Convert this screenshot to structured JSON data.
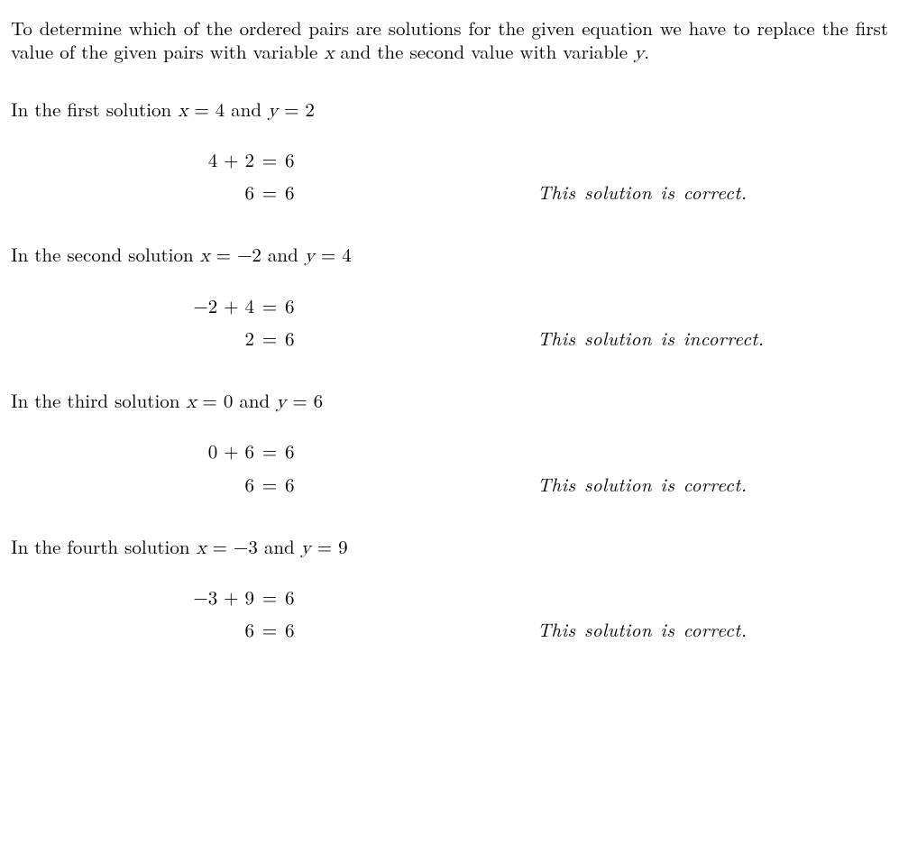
{
  "intro": {
    "part1": "To determine which of the ordered pairs are solutions for the given equation we have to replace the first value of the given pairs with variable ",
    "var1": "x",
    "part2": " and the second value with variable ",
    "var2": "y",
    "part3": "."
  },
  "solutions": [
    {
      "lead_a": "In the first solution ",
      "xvar": "x",
      "xeq": " = 4",
      "and": " and ",
      "yvar": "y",
      "yeq": " = 2",
      "eq1_left": "4 + 2",
      "eq1_eq": "=",
      "eq1_right": "6",
      "eq2_left": "6",
      "eq2_eq": "=",
      "eq2_right": "6",
      "note": "This solution is correct."
    },
    {
      "lead_a": "In the second solution ",
      "xvar": "x",
      "xeq": " = −2",
      "and": " and ",
      "yvar": "y",
      "yeq": " = 4",
      "eq1_left": "−2 + 4",
      "eq1_eq": "=",
      "eq1_right": "6",
      "eq2_left": "2",
      "eq2_eq": "=",
      "eq2_right": "6",
      "note": "This solution is incorrect."
    },
    {
      "lead_a": "In the third solution ",
      "xvar": "x",
      "xeq": " = 0",
      "and": " and ",
      "yvar": "y",
      "yeq": " = 6",
      "eq1_left": "0 + 6",
      "eq1_eq": "=",
      "eq1_right": "6",
      "eq2_left": "6",
      "eq2_eq": "=",
      "eq2_right": "6",
      "note": "This solution is correct."
    },
    {
      "lead_a": "In the fourth solution ",
      "xvar": "x",
      "xeq": " = −3",
      "and": " and ",
      "yvar": "y",
      "yeq": " = 9",
      "eq1_left": "−3 + 9",
      "eq1_eq": "=",
      "eq1_right": "6",
      "eq2_left": "6",
      "eq2_eq": "=",
      "eq2_right": "6",
      "note": "This solution is correct."
    }
  ]
}
